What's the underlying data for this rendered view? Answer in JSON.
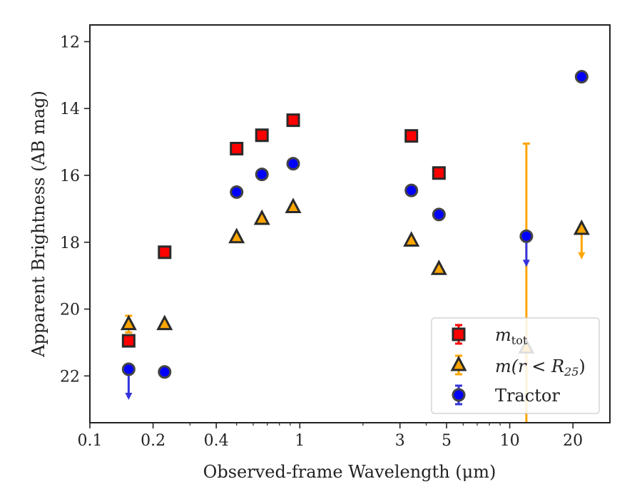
{
  "chart_data": {
    "type": "scatter",
    "xlabel": "Observed-frame Wavelength (μm)",
    "ylabel": "Apparent Brightness (AB mag)",
    "xscale": "log",
    "xlim": [
      0.1,
      30
    ],
    "ylim": [
      23.4,
      11.5
    ],
    "y_inverted": true,
    "x_tick_values": [
      0.1,
      0.2,
      0.4,
      1,
      3,
      5,
      10,
      20
    ],
    "x_tick_labels": [
      "0.1",
      "0.2",
      "0.4",
      "1",
      "3",
      "5",
      "10",
      "20"
    ],
    "y_tick_values": [
      12,
      14,
      16,
      18,
      20,
      22
    ],
    "y_tick_labels": [
      "12",
      "14",
      "16",
      "18",
      "20",
      "22"
    ],
    "grid": false,
    "legend_position": "lower-right",
    "series": [
      {
        "name": "m_tot",
        "legend_label_main": "m",
        "legend_label_sub": "tot",
        "marker": "square",
        "color": "#ff0000",
        "error_color": "#ff0000",
        "points": [
          {
            "x": 0.153,
            "y": 20.95,
            "err": 0.15
          },
          {
            "x": 0.227,
            "y": 18.3,
            "err": 0.05
          },
          {
            "x": 0.5,
            "y": 15.2,
            "err": 0.05
          },
          {
            "x": 0.66,
            "y": 14.8,
            "err": 0.05
          },
          {
            "x": 0.93,
            "y": 14.35,
            "err": 0.05
          },
          {
            "x": 3.4,
            "y": 14.82,
            "err": 0.05
          },
          {
            "x": 4.6,
            "y": 15.93,
            "err": 0.05
          }
        ]
      },
      {
        "name": "m(r < R25)",
        "legend_label_main": "m(r < R",
        "legend_label_sub": "25",
        "legend_label_end": ")",
        "marker": "triangle",
        "color": "#ffa500",
        "error_color": "#ffa500",
        "points": [
          {
            "x": 0.153,
            "y": 20.45,
            "err_low": 0.25,
            "err_high": 0.25
          },
          {
            "x": 0.227,
            "y": 20.45,
            "err": 0.05
          },
          {
            "x": 0.5,
            "y": 17.85,
            "err": 0.05
          },
          {
            "x": 0.66,
            "y": 17.3,
            "err": 0.05
          },
          {
            "x": 0.93,
            "y": 16.95,
            "err": 0.05
          },
          {
            "x": 3.4,
            "y": 17.95,
            "err": 0.05
          },
          {
            "x": 4.6,
            "y": 18.8,
            "err": 0.05
          },
          {
            "x": 12.0,
            "y": 21.15,
            "err_low": 6.1,
            "err_high": 2.3
          },
          {
            "x": 22.0,
            "y": 17.6,
            "upper_limit": true
          }
        ]
      },
      {
        "name": "Tractor",
        "marker": "circle",
        "color": "#0000ff",
        "error_color": "#3333dd",
        "points": [
          {
            "x": 0.153,
            "y": 21.8,
            "upper_limit": true
          },
          {
            "x": 0.227,
            "y": 21.88,
            "err": 0.05
          },
          {
            "x": 0.5,
            "y": 16.5,
            "err": 0.05
          },
          {
            "x": 0.66,
            "y": 15.97,
            "err": 0.05
          },
          {
            "x": 0.93,
            "y": 15.65,
            "err": 0.05
          },
          {
            "x": 3.4,
            "y": 16.45,
            "err": 0.05
          },
          {
            "x": 4.6,
            "y": 17.17,
            "err": 0.05
          },
          {
            "x": 12.0,
            "y": 17.82,
            "upper_limit": true
          },
          {
            "x": 22.0,
            "y": 13.05,
            "err": 0.05
          }
        ]
      }
    ],
    "legend": {
      "tractor_label": "Tractor"
    }
  }
}
